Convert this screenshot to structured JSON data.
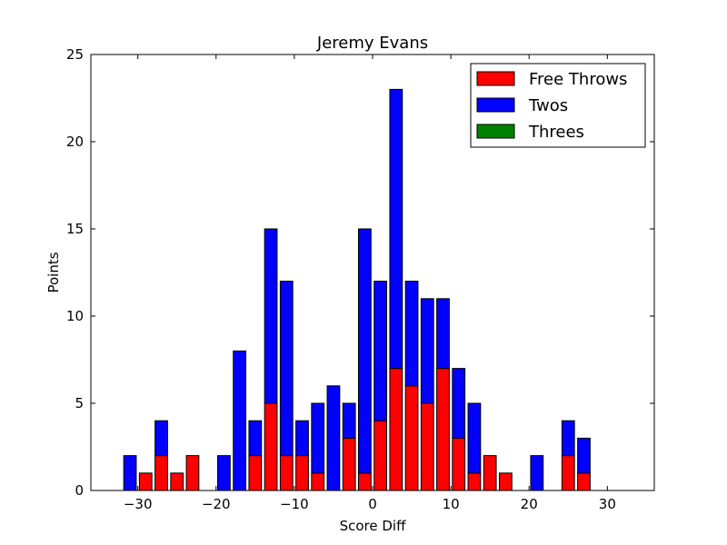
{
  "chart_data": {
    "type": "bar",
    "stacked": true,
    "title": "Jeremy Evans",
    "xlabel": "Score Diff",
    "ylabel": "Points",
    "xlim": [
      -36,
      36
    ],
    "ylim": [
      0,
      25
    ],
    "xticks": [
      -30,
      -20,
      -10,
      0,
      10,
      20,
      30
    ],
    "yticks": [
      0,
      5,
      10,
      15,
      20,
      25
    ],
    "x": [
      -35,
      -33,
      -31,
      -29,
      -27,
      -25,
      -23,
      -21,
      -19,
      -17,
      -15,
      -13,
      -11,
      -9,
      -7,
      -5,
      -3,
      -1,
      1,
      3,
      5,
      7,
      9,
      11,
      13,
      15,
      17,
      19,
      21,
      23,
      25,
      27,
      29,
      31,
      33,
      35
    ],
    "bar_width": 1.6,
    "series": [
      {
        "name": "Free Throws",
        "color": "#ff0000",
        "values": [
          0,
          0,
          0,
          1,
          2,
          1,
          2,
          0,
          0,
          0,
          2,
          5,
          2,
          2,
          1,
          0,
          3,
          1,
          4,
          7,
          6,
          5,
          7,
          3,
          1,
          2,
          1,
          0,
          0,
          0,
          2,
          1,
          0,
          0,
          0,
          0
        ]
      },
      {
        "name": "Twos",
        "color": "#0000ff",
        "values": [
          0,
          0,
          2,
          0,
          2,
          0,
          0,
          0,
          2,
          8,
          2,
          10,
          10,
          2,
          4,
          6,
          2,
          14,
          8,
          16,
          6,
          6,
          4,
          4,
          4,
          0,
          0,
          0,
          2,
          0,
          2,
          2,
          0,
          0,
          0,
          0
        ]
      },
      {
        "name": "Threes",
        "color": "#008000",
        "values": [
          0,
          0,
          0,
          0,
          0,
          0,
          0,
          0,
          0,
          0,
          0,
          0,
          0,
          0,
          0,
          0,
          0,
          0,
          0,
          0,
          0,
          0,
          0,
          0,
          0,
          0,
          0,
          0,
          0,
          0,
          0,
          0,
          0,
          0,
          0,
          0
        ]
      }
    ],
    "grid": false,
    "legend_position": "top-right"
  }
}
